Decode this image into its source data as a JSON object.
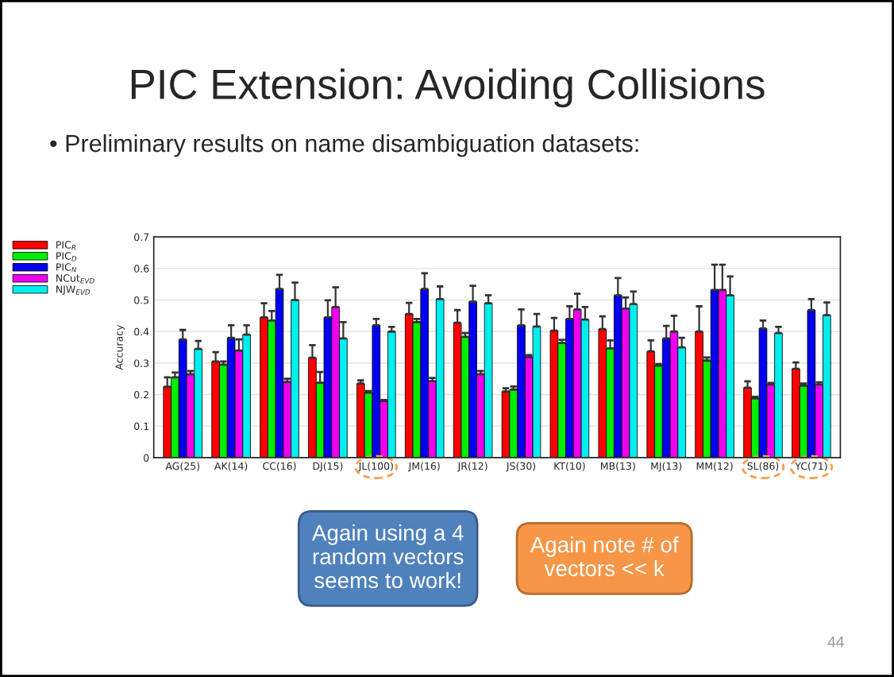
{
  "chart_data": {
    "type": "bar",
    "title": "PIC Extension: Avoiding Collisions",
    "subtitle": "• Preliminary results on name disambiguation datasets:",
    "ylabel": "Accuracy",
    "categories": [
      "AG(25)",
      "AK(14)",
      "CC(16)",
      "DJ(15)",
      "JL(100)",
      "JM(16)",
      "JR(12)",
      "JS(30)",
      "KT(10)",
      "MB(13)",
      "MJ(13)",
      "MM(12)",
      "SL(86)",
      "YC(71)"
    ],
    "series": [
      {
        "name": "PIC$_{R}$",
        "color": "#ff0000",
        "values": [
          0.225,
          0.305,
          0.445,
          0.317,
          0.235,
          0.456,
          0.428,
          0.21,
          0.403,
          0.408,
          0.337,
          0.4,
          0.222,
          0.282
        ],
        "errors": [
          [
            0.225,
            0.255
          ],
          [
            0.305,
            0.335
          ],
          [
            0.445,
            0.49
          ],
          [
            0.317,
            0.357
          ],
          [
            0.235,
            0.245
          ],
          [
            0.456,
            0.491
          ],
          [
            0.428,
            0.468
          ],
          [
            0.21,
            0.22
          ],
          [
            0.403,
            0.443
          ],
          [
            0.408,
            0.448
          ],
          [
            0.337,
            0.372
          ],
          [
            0.4,
            0.48
          ],
          [
            0.222,
            0.242
          ],
          [
            0.282,
            0.302
          ]
        ]
      },
      {
        "name": "PIC$_{D}$",
        "color": "#00ee00",
        "values": [
          0.255,
          0.295,
          0.435,
          0.238,
          0.206,
          0.43,
          0.383,
          0.216,
          0.364,
          0.347,
          0.292,
          0.308,
          0.188,
          0.228
        ],
        "errors": [
          [
            0.255,
            0.27
          ],
          [
            0.295,
            0.305
          ],
          [
            0.435,
            0.465
          ],
          [
            0.238,
            0.272
          ],
          [
            0.206,
            0.211
          ],
          [
            0.43,
            0.44
          ],
          [
            0.383,
            0.395
          ],
          [
            0.216,
            0.226
          ],
          [
            0.364,
            0.374
          ],
          [
            0.347,
            0.372
          ],
          [
            0.292,
            0.297
          ],
          [
            0.308,
            0.318
          ],
          [
            0.188,
            0.193
          ],
          [
            0.228,
            0.235
          ]
        ]
      },
      {
        "name": "PIC$_{N}$",
        "color": "#0000ee",
        "values": [
          0.375,
          0.38,
          0.535,
          0.445,
          0.42,
          0.535,
          0.495,
          0.42,
          0.44,
          0.515,
          0.378,
          0.532,
          0.41,
          0.468
        ],
        "errors": [
          [
            0.375,
            0.405
          ],
          [
            0.38,
            0.42
          ],
          [
            0.535,
            0.58
          ],
          [
            0.445,
            0.499
          ],
          [
            0.42,
            0.44
          ],
          [
            0.535,
            0.585
          ],
          [
            0.495,
            0.545
          ],
          [
            0.42,
            0.47
          ],
          [
            0.44,
            0.48
          ],
          [
            0.515,
            0.57
          ],
          [
            0.378,
            0.418
          ],
          [
            0.532,
            0.612
          ],
          [
            0.41,
            0.435
          ],
          [
            0.468,
            0.503
          ]
        ]
      },
      {
        "name": "NCut$_{EVD}$",
        "color": "#ee00ee",
        "values": [
          0.265,
          0.34,
          0.24,
          0.478,
          0.18,
          0.243,
          0.265,
          0.319,
          0.47,
          0.473,
          0.4,
          0.532,
          0.232,
          0.232
        ],
        "errors": [
          [
            0.265,
            0.275
          ],
          [
            0.34,
            0.375
          ],
          [
            0.24,
            0.25
          ],
          [
            0.478,
            0.54
          ],
          [
            0.18,
            0.183
          ],
          [
            0.243,
            0.253
          ],
          [
            0.265,
            0.275
          ],
          [
            0.319,
            0.325
          ],
          [
            0.47,
            0.52
          ],
          [
            0.473,
            0.508
          ],
          [
            0.4,
            0.45
          ],
          [
            0.532,
            0.612
          ],
          [
            0.232,
            0.237
          ],
          [
            0.232,
            0.239
          ]
        ]
      },
      {
        "name": "NJW$_{EVD}$",
        "color": "#00eeee",
        "values": [
          0.345,
          0.39,
          0.5,
          0.378,
          0.4,
          0.503,
          0.49,
          0.416,
          0.438,
          0.487,
          0.35,
          0.515,
          0.395,
          0.452
        ],
        "errors": [
          [
            0.345,
            0.37
          ],
          [
            0.39,
            0.42
          ],
          [
            0.5,
            0.555
          ],
          [
            0.378,
            0.43
          ],
          [
            0.4,
            0.415
          ],
          [
            0.503,
            0.543
          ],
          [
            0.49,
            0.515
          ],
          [
            0.416,
            0.456
          ],
          [
            0.438,
            0.478
          ],
          [
            0.487,
            0.527
          ],
          [
            0.35,
            0.38
          ],
          [
            0.515,
            0.575
          ],
          [
            0.395,
            0.415
          ],
          [
            0.452,
            0.492
          ]
        ]
      }
    ],
    "ylim": [
      0,
      0.7
    ],
    "yticks": [
      0,
      0.1,
      0.2,
      0.3,
      0.4,
      0.5,
      0.6,
      0.7
    ],
    "grid": "y",
    "legend": "left",
    "annotations": [
      "Again using a 4 random vectors seems to work!",
      "Again note # of vectors << k",
      "44"
    ]
  }
}
